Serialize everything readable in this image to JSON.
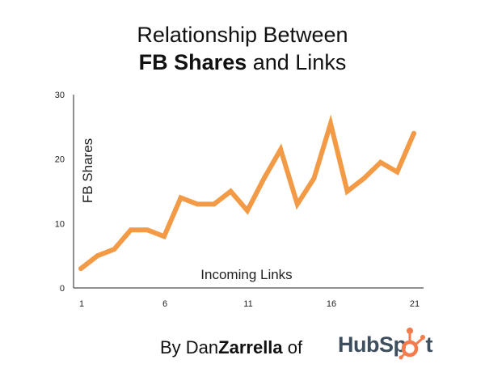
{
  "title": {
    "line1": "Relationship Between",
    "line2_bold": "FB Shares",
    "line2_rest": " and Links"
  },
  "chart_data": {
    "type": "line",
    "title": "Relationship Between FB Shares and Links",
    "xlabel": "Incoming Links",
    "ylabel": "FB Shares",
    "x": [
      1,
      2,
      3,
      4,
      5,
      6,
      7,
      8,
      9,
      10,
      11,
      12,
      13,
      14,
      15,
      16,
      17,
      18,
      19,
      20,
      21
    ],
    "series": [
      {
        "values": [
          3,
          5,
          6,
          9,
          9,
          8,
          14,
          13,
          13,
          15,
          12,
          17,
          21.5,
          13,
          17,
          25.5,
          15,
          17,
          19.5,
          18,
          24
        ]
      }
    ],
    "xticks": [
      1,
      6,
      11,
      16,
      21
    ],
    "yticks": [
      0,
      10,
      20,
      30
    ],
    "xlim": [
      1,
      21
    ],
    "ylim": [
      0,
      30
    ],
    "grid": false,
    "line_color": "#f39a47"
  },
  "credit": {
    "prefix": "By Dan",
    "bold": "Zarrella",
    "suffix": " of"
  },
  "logo": {
    "text_a": "HubSp",
    "text_b": "t",
    "accent": "#f37b4c"
  }
}
